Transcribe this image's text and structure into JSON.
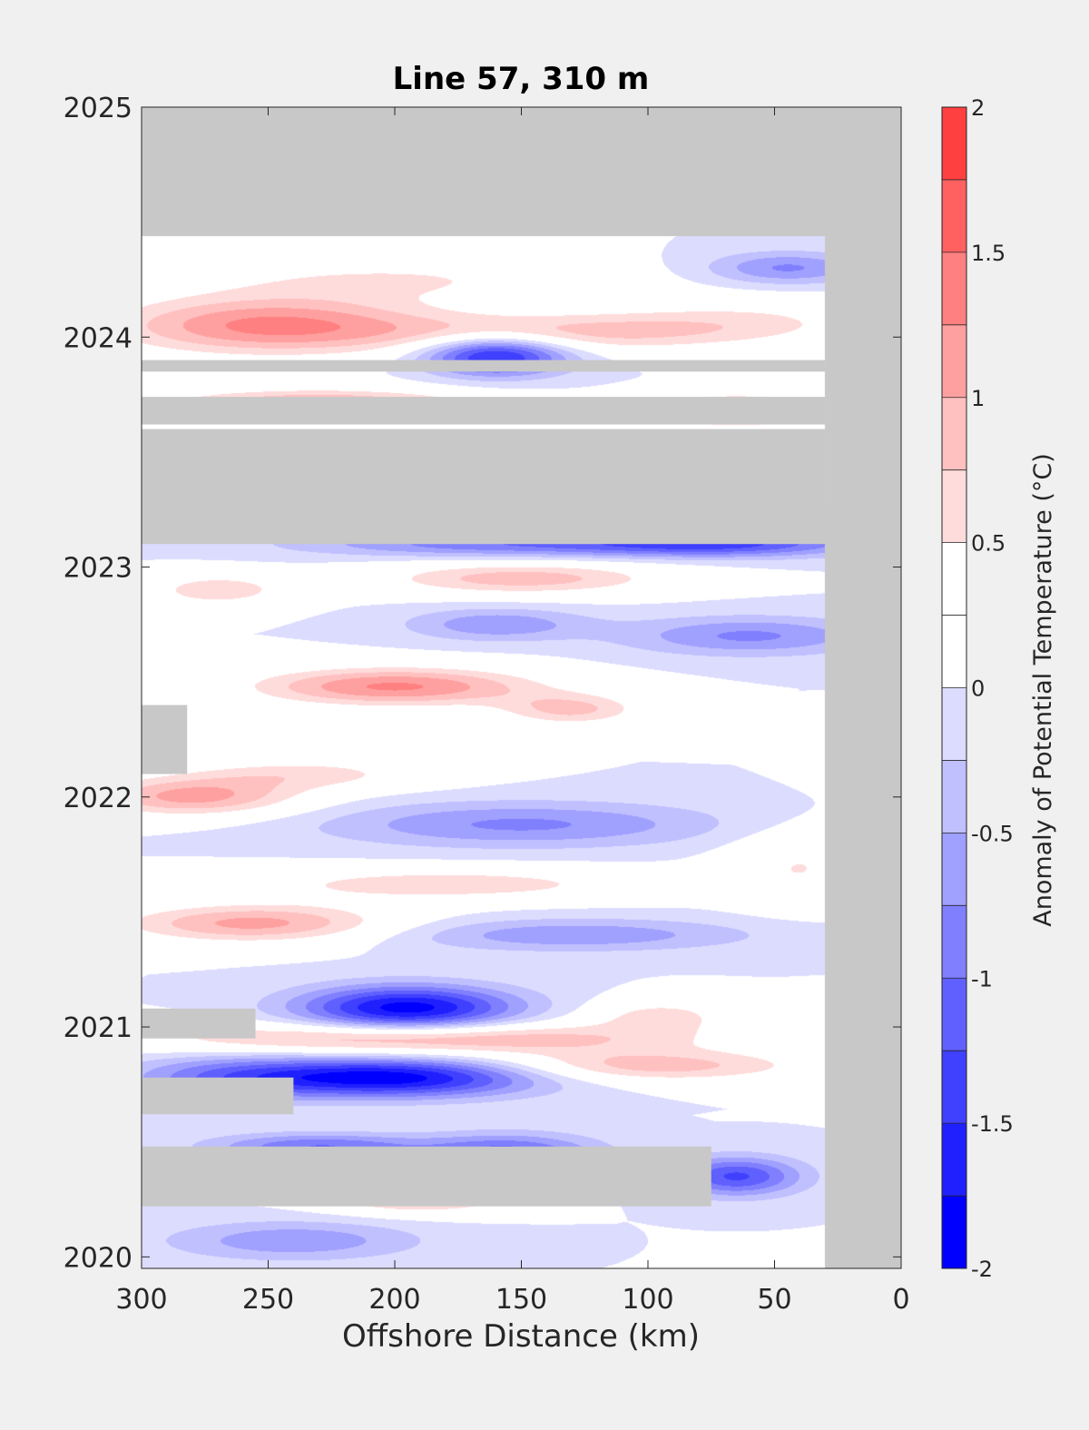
{
  "chart_data": {
    "type": "heatmap",
    "title": "Line 57, 310 m",
    "xlabel": "Offshore Distance (km)",
    "ylabel": "",
    "xlim": [
      300,
      0
    ],
    "x_reversed": true,
    "ylim": [
      2019.95,
      2025
    ],
    "xticks": [
      300,
      250,
      200,
      150,
      100,
      50,
      0
    ],
    "yticks": [
      2020,
      2021,
      2022,
      2023,
      2024,
      2025
    ],
    "grid": false,
    "missing_color": "#c8c8c8",
    "colorbar": {
      "label": "Anomaly of Potential Temperature (°C)",
      "range": [
        -2,
        2
      ],
      "ticks": [
        -2,
        -1.5,
        -1,
        -0.5,
        0,
        0.5,
        1,
        1.5,
        2
      ],
      "tick_labels": [
        "-2",
        "-1.5",
        "-1",
        "-0.5",
        "0",
        "0.5",
        "1",
        "1.5",
        "2"
      ],
      "levels": [
        -2,
        -1.75,
        -1.5,
        -1.25,
        -1,
        -0.75,
        -0.5,
        -0.25,
        0,
        0.25,
        0.5,
        0.75,
        1,
        1.25,
        1.5,
        1.75,
        2
      ],
      "colors": [
        "#0000ff",
        "#2020ff",
        "#4040ff",
        "#6060ff",
        "#8080ff",
        "#a0a0ff",
        "#c0c0ff",
        "#dcdcff",
        "#ffffff",
        "#ffffff",
        "#ffdcdc",
        "#ffc0c0",
        "#ffa0a0",
        "#ff8080",
        "#ff6060",
        "#ff4040",
        "#ff2020"
      ],
      "placement": "right"
    },
    "data_coverage": {
      "x_range_km": [
        300,
        30
      ],
      "time_range": [
        2019.95,
        2024.44
      ]
    },
    "missing_data_bands": [
      {
        "x": [
          300,
          0
        ],
        "t": [
          2024.44,
          2025
        ]
      },
      {
        "x": [
          30,
          0
        ],
        "t": [
          2019.95,
          2025
        ]
      },
      {
        "x": [
          300,
          30
        ],
        "t": [
          2023.85,
          2023.9
        ]
      },
      {
        "x": [
          300,
          30
        ],
        "t": [
          2023.62,
          2023.74
        ]
      },
      {
        "x": [
          300,
          30
        ],
        "t": [
          2023.1,
          2023.6
        ]
      },
      {
        "x": [
          300,
          282
        ],
        "t": [
          2022.1,
          2022.4
        ]
      },
      {
        "x": [
          300,
          255
        ],
        "t": [
          2020.95,
          2021.08
        ]
      },
      {
        "x": [
          300,
          240
        ],
        "t": [
          2020.62,
          2020.78
        ]
      },
      {
        "x": [
          300,
          75
        ],
        "t": [
          2020.22,
          2020.48
        ]
      }
    ],
    "anomalies": [
      {
        "x": 250,
        "t": 2024.05,
        "value": 1.3,
        "sx": 45,
        "st": 0.09
      },
      {
        "x": 130,
        "t": 2024.02,
        "value": 0.8,
        "sx": 55,
        "st": 0.06
      },
      {
        "x": 200,
        "t": 2024.25,
        "value": 0.5,
        "sx": 60,
        "st": 0.07
      },
      {
        "x": 60,
        "t": 2024.08,
        "value": 0.4,
        "sx": 40,
        "st": 0.07
      },
      {
        "x": 160,
        "t": 2023.92,
        "value": -1.7,
        "sx": 20,
        "st": 0.06
      },
      {
        "x": 45,
        "t": 2024.3,
        "value": -0.8,
        "sx": 22,
        "st": 0.05
      },
      {
        "x": 230,
        "t": 2023.7,
        "value": 1.2,
        "sx": 45,
        "st": 0.05
      },
      {
        "x": 65,
        "t": 2023.68,
        "value": 1.1,
        "sx": 25,
        "st": 0.05
      },
      {
        "x": 160,
        "t": 2023.1,
        "value": -0.9,
        "sx": 55,
        "st": 0.04
      },
      {
        "x": 70,
        "t": 2023.1,
        "value": -1.2,
        "sx": 40,
        "st": 0.04
      },
      {
        "x": 150,
        "t": 2022.95,
        "value": 0.9,
        "sx": 40,
        "st": 0.05
      },
      {
        "x": 270,
        "t": 2022.9,
        "value": 0.7,
        "sx": 20,
        "st": 0.05
      },
      {
        "x": 160,
        "t": 2022.75,
        "value": -0.7,
        "sx": 25,
        "st": 0.05
      },
      {
        "x": 60,
        "t": 2022.7,
        "value": -0.8,
        "sx": 35,
        "st": 0.06
      },
      {
        "x": 200,
        "t": 2022.48,
        "value": 1.3,
        "sx": 40,
        "st": 0.06
      },
      {
        "x": 130,
        "t": 2022.38,
        "value": 0.8,
        "sx": 20,
        "st": 0.05
      },
      {
        "x": 280,
        "t": 2022.0,
        "value": 1.1,
        "sx": 30,
        "st": 0.06
      },
      {
        "x": 235,
        "t": 2022.1,
        "value": 0.6,
        "sx": 35,
        "st": 0.05
      },
      {
        "x": 150,
        "t": 2021.88,
        "value": -0.8,
        "sx": 55,
        "st": 0.07
      },
      {
        "x": 180,
        "t": 2021.62,
        "value": 0.7,
        "sx": 55,
        "st": 0.05
      },
      {
        "x": 40,
        "t": 2021.7,
        "value": 0.5,
        "sx": 20,
        "st": 0.12
      },
      {
        "x": 255,
        "t": 2021.45,
        "value": 1.1,
        "sx": 38,
        "st": 0.06
      },
      {
        "x": 130,
        "t": 2021.4,
        "value": -0.7,
        "sx": 50,
        "st": 0.05
      },
      {
        "x": 195,
        "t": 2021.08,
        "value": -1.9,
        "sx": 30,
        "st": 0.07
      },
      {
        "x": 190,
        "t": 2020.95,
        "value": 1.1,
        "sx": 75,
        "st": 0.05
      },
      {
        "x": 100,
        "t": 2020.83,
        "value": 0.9,
        "sx": 45,
        "st": 0.05
      },
      {
        "x": 200,
        "t": 2020.78,
        "value": -1.9,
        "sx": 40,
        "st": 0.06
      },
      {
        "x": 265,
        "t": 2020.78,
        "value": -0.8,
        "sx": 30,
        "st": 0.07
      },
      {
        "x": 155,
        "t": 2020.45,
        "value": -1.1,
        "sx": 25,
        "st": 0.06
      },
      {
        "x": 230,
        "t": 2020.48,
        "value": -1.0,
        "sx": 30,
        "st": 0.04
      },
      {
        "x": 65,
        "t": 2020.35,
        "value": -1.3,
        "sx": 18,
        "st": 0.06
      },
      {
        "x": 190,
        "t": 2020.27,
        "value": 1.2,
        "sx": 25,
        "st": 0.05
      },
      {
        "x": 240,
        "t": 2020.07,
        "value": -0.7,
        "sx": 35,
        "st": 0.06
      },
      {
        "x": 95,
        "t": 2021.05,
        "value": 0.6,
        "sx": 20,
        "st": 0.05
      }
    ]
  }
}
